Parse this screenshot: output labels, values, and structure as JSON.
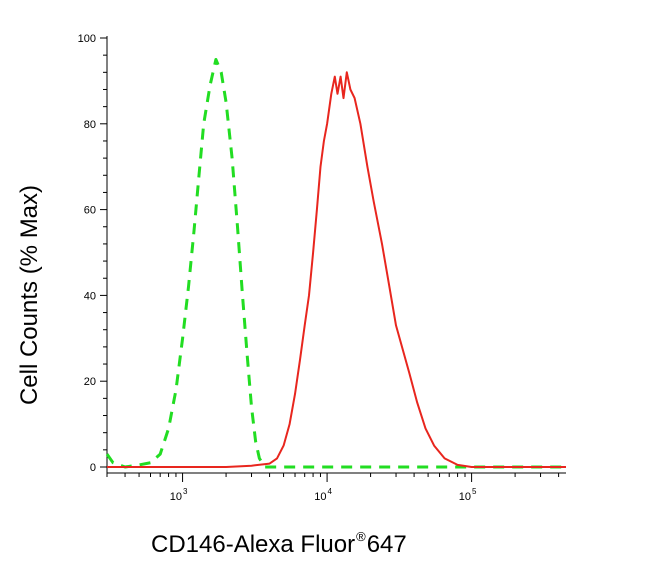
{
  "chart_data": {
    "type": "line",
    "title": "",
    "xlabel": "CD146-Alexa Fluor",
    "xlabel_superscript": "®",
    "xlabel_suffix": "647",
    "ylabel": "Cell Counts (% Max)",
    "x_scale": "log",
    "xlim": [
      300,
      450000
    ],
    "ylim": [
      0,
      100
    ],
    "y_ticks": [
      {
        "value": 0,
        "label": "0"
      },
      {
        "value": 20,
        "label": "20"
      },
      {
        "value": 40,
        "label": "40"
      },
      {
        "value": 60,
        "label": "60"
      },
      {
        "value": 80,
        "label": "80"
      },
      {
        "value": 100,
        "label": "100"
      }
    ],
    "x_ticks": [
      {
        "value": 1000,
        "base": "10",
        "exp": "3"
      },
      {
        "value": 10000,
        "base": "10",
        "exp": "4"
      },
      {
        "value": 100000,
        "base": "10",
        "exp": "5"
      }
    ],
    "grid": false,
    "legend": "none",
    "series": [
      {
        "color": "#22dd22",
        "style": "dashed",
        "points": [
          [
            300,
            3
          ],
          [
            330,
            1
          ],
          [
            400,
            0
          ],
          [
            500,
            0.5
          ],
          [
            600,
            1
          ],
          [
            700,
            3
          ],
          [
            800,
            9
          ],
          [
            900,
            18
          ],
          [
            1000,
            30
          ],
          [
            1100,
            42
          ],
          [
            1200,
            55
          ],
          [
            1300,
            68
          ],
          [
            1400,
            80
          ],
          [
            1550,
            89
          ],
          [
            1700,
            95
          ],
          [
            1850,
            92
          ],
          [
            2000,
            85
          ],
          [
            2200,
            72
          ],
          [
            2400,
            56
          ],
          [
            2600,
            40
          ],
          [
            2800,
            26
          ],
          [
            3000,
            14
          ],
          [
            3200,
            6
          ],
          [
            3400,
            2
          ],
          [
            3700,
            0
          ],
          [
            5000,
            0
          ],
          [
            10000,
            0
          ],
          [
            20000,
            0
          ],
          [
            30000,
            0
          ],
          [
            100000,
            0
          ],
          [
            450000,
            0
          ]
        ]
      },
      {
        "color": "#e8261e",
        "style": "solid",
        "points": [
          [
            300,
            0
          ],
          [
            1000,
            0
          ],
          [
            2000,
            0
          ],
          [
            3000,
            0.3
          ],
          [
            4000,
            0.8
          ],
          [
            4500,
            2
          ],
          [
            5000,
            5
          ],
          [
            5500,
            10
          ],
          [
            6000,
            17
          ],
          [
            6500,
            25
          ],
          [
            7000,
            33
          ],
          [
            7500,
            40
          ],
          [
            8000,
            50
          ],
          [
            8500,
            60
          ],
          [
            9000,
            70
          ],
          [
            9500,
            76
          ],
          [
            10000,
            80
          ],
          [
            10700,
            87
          ],
          [
            11300,
            91
          ],
          [
            11800,
            87
          ],
          [
            12400,
            91
          ],
          [
            13000,
            86
          ],
          [
            13700,
            92
          ],
          [
            14500,
            88
          ],
          [
            15500,
            86
          ],
          [
            17000,
            80
          ],
          [
            19000,
            70
          ],
          [
            21000,
            62
          ],
          [
            24000,
            52
          ],
          [
            27000,
            42
          ],
          [
            30000,
            33
          ],
          [
            33000,
            28
          ],
          [
            37000,
            22
          ],
          [
            42000,
            15
          ],
          [
            48000,
            9
          ],
          [
            55000,
            5
          ],
          [
            65000,
            2
          ],
          [
            80000,
            0.5
          ],
          [
            100000,
            0
          ],
          [
            450000,
            0
          ]
        ]
      }
    ]
  }
}
